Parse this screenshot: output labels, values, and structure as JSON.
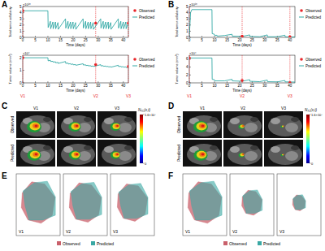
{
  "chart_data": [
    {
      "type": "line",
      "panel": "A",
      "y_label": "Total tumor cellularity",
      "y_multiplier": "×10¹⁰",
      "x_label": "Time (days)",
      "xlim": [
        0,
        42
      ],
      "xticks": [
        0,
        5,
        10,
        15,
        20,
        25,
        30,
        35,
        40
      ],
      "ylim": [
        0,
        5
      ],
      "yticks": [
        0,
        1,
        2,
        3,
        4,
        5
      ],
      "grid": false,
      "legend": "right",
      "series": [
        {
          "name": "Observed",
          "type": "scatter",
          "marker": "circle",
          "color": "#e8262a",
          "x": [
            0,
            29,
            42
          ],
          "values": [
            4.3,
            2.3,
            2.3
          ]
        },
        {
          "name": "Predicted",
          "type": "line",
          "line_style": "solid",
          "color": "#1b9e9a",
          "x": [
            0,
            10,
            10.1,
            11,
            11.1,
            12,
            12.1,
            13,
            13.1,
            14,
            14.1,
            17,
            17.1,
            18,
            18.1,
            19,
            19.1,
            20,
            20.1,
            21,
            21.1,
            24,
            24.1,
            25,
            25.1,
            26,
            26.1,
            27,
            27.1,
            28,
            28.1,
            31,
            31.1,
            32,
            32.1,
            33,
            33.1,
            34,
            34.1,
            35,
            35.1,
            38,
            38.1,
            39,
            39.1,
            40,
            40.1,
            41,
            41.1,
            42
          ],
          "values": [
            4.3,
            4.3,
            1.6,
            2.6,
            1.4,
            2.5,
            1.4,
            2.5,
            1.4,
            2.4,
            1.3,
            3.0,
            1.5,
            2.6,
            1.4,
            2.5,
            1.4,
            2.5,
            1.4,
            2.4,
            1.3,
            3.0,
            1.5,
            2.6,
            1.4,
            2.5,
            1.4,
            2.5,
            1.4,
            2.4,
            1.3,
            3.0,
            1.5,
            2.6,
            1.4,
            2.5,
            1.4,
            2.5,
            1.4,
            2.4,
            1.3,
            3.0,
            1.5,
            2.6,
            1.4,
            2.5,
            1.4,
            2.5,
            1.4,
            2.4
          ]
        }
      ]
    },
    {
      "type": "line",
      "y_label": "Tumor volume (mm³)",
      "y_multiplier": "×10⁴",
      "x_label": "Time (days)",
      "xlim": [
        0,
        42
      ],
      "xticks": [
        0,
        5,
        10,
        15,
        20,
        25,
        30,
        35,
        40
      ],
      "ylim": [
        0,
        2.2
      ],
      "yticks": [
        0,
        1,
        2
      ],
      "grid": false,
      "legend": "right",
      "visits": [
        {
          "x": 0,
          "label": "V1"
        },
        {
          "x": 29,
          "label": "V2"
        },
        {
          "x": 42,
          "label": "V3"
        }
      ],
      "series": [
        {
          "name": "Observed",
          "type": "scatter",
          "marker": "circle",
          "color": "#e8262a",
          "x": [
            0,
            29,
            42
          ],
          "values": [
            2.0,
            1.45,
            1.3
          ]
        },
        {
          "name": "Predicted",
          "type": "line",
          "line_style": "solid",
          "color": "#1b9e9a",
          "x": [
            0,
            10,
            10.1,
            11,
            11.1,
            12,
            12.1,
            13,
            13.1,
            14,
            14.1,
            17,
            17.1,
            18,
            18.1,
            19,
            19.1,
            20,
            20.1,
            21,
            21.1,
            24,
            24.1,
            25,
            25.1,
            26,
            26.1,
            27,
            27.1,
            28,
            28.1,
            31,
            31.1,
            32,
            32.1,
            33,
            33.1,
            34,
            34.1,
            35,
            35.1,
            38,
            38.1,
            39,
            39.1,
            40,
            40.1,
            41,
            41.1,
            42
          ],
          "values": [
            2.0,
            2.0,
            1.75,
            1.8,
            1.7,
            1.72,
            1.65,
            1.68,
            1.6,
            1.63,
            1.55,
            1.7,
            1.55,
            1.58,
            1.5,
            1.53,
            1.47,
            1.5,
            1.44,
            1.46,
            1.4,
            1.52,
            1.42,
            1.44,
            1.38,
            1.4,
            1.35,
            1.37,
            1.32,
            1.34,
            1.3,
            1.45,
            1.35,
            1.37,
            1.32,
            1.34,
            1.3,
            1.31,
            1.27,
            1.29,
            1.25,
            1.4,
            1.3,
            1.32,
            1.27,
            1.29,
            1.25,
            1.27,
            1.22,
            1.24
          ]
        }
      ]
    },
    {
      "type": "line",
      "panel": "B",
      "y_label": "Total tumor cellularity",
      "y_multiplier": "×10¹⁰",
      "x_label": "Time (days)",
      "xlim": [
        0,
        42
      ],
      "xticks": [
        0,
        5,
        10,
        15,
        20,
        25,
        30,
        35,
        40
      ],
      "ylim": [
        0,
        5
      ],
      "yticks": [
        0,
        1,
        2,
        3,
        4,
        5
      ],
      "grid": false,
      "legend": "right",
      "series": [
        {
          "name": "Observed",
          "type": "scatter",
          "marker": "circle",
          "color": "#e8262a",
          "x": [
            21,
            40
          ],
          "values": [
            0.2,
            0.1
          ]
        },
        {
          "name": "Predicted",
          "type": "line",
          "line_style": "solid",
          "color": "#1b9e9a",
          "x": [
            0,
            0.5,
            1,
            9,
            9.1,
            10,
            10.1,
            11,
            11.1,
            14,
            17,
            17.1,
            21,
            24,
            24.1,
            28,
            31,
            31.1,
            35,
            38,
            38.1,
            42
          ],
          "values": [
            0.1,
            4.0,
            4.5,
            4.5,
            0.6,
            0.5,
            0.3,
            0.35,
            0.2,
            0.3,
            0.5,
            0.2,
            0.15,
            0.4,
            0.15,
            0.1,
            0.4,
            0.1,
            0.1,
            0.35,
            0.1,
            0.05
          ]
        }
      ]
    },
    {
      "type": "line",
      "y_label": "Tumor volume (mm³)",
      "y_multiplier": "×10⁴",
      "x_label": "Time (days)",
      "xlim": [
        0,
        42
      ],
      "xticks": [
        0,
        5,
        10,
        15,
        20,
        25,
        30,
        35,
        40
      ],
      "ylim": [
        0,
        7
      ],
      "yticks": [
        0,
        2,
        4,
        6
      ],
      "grid": false,
      "legend": "right",
      "visits": [
        {
          "x": 0,
          "label": "V1"
        },
        {
          "x": 21,
          "label": "V2"
        },
        {
          "x": 40,
          "label": "V3"
        }
      ],
      "series": [
        {
          "name": "Observed",
          "type": "scatter",
          "marker": "circle",
          "color": "#e8262a",
          "x": [
            0,
            21,
            40
          ],
          "values": [
            6.3,
            0.6,
            0.05
          ]
        },
        {
          "name": "Predicted",
          "type": "line",
          "line_style": "solid",
          "color": "#1b9e9a",
          "x": [
            0,
            9,
            9.1,
            10,
            10.1,
            14,
            17,
            17.1,
            21,
            24,
            24.1,
            28,
            31,
            31.1,
            35,
            38,
            38.1,
            42
          ],
          "values": [
            6.3,
            6.3,
            0.9,
            0.8,
            0.5,
            0.5,
            0.9,
            0.5,
            0.4,
            0.8,
            0.4,
            0.3,
            0.7,
            0.3,
            0.25,
            0.6,
            0.25,
            0.2
          ]
        }
      ]
    }
  ],
  "images": [
    {
      "panel": "C",
      "columns": [
        "V1",
        "V2",
        "V3"
      ],
      "rows": [
        "Observed",
        "Predicted"
      ],
      "colorbar": {
        "label": [
          "N",
          "TC",
          "(x,t)"
        ],
        "range": [
          0,
          16000000
        ],
        "ticks": [
          0,
          {
            "value": 16000000,
            "label": "1.6×10⁷"
          }
        ]
      }
    },
    {
      "panel": "D",
      "columns": [
        "V1",
        "V2",
        "V3"
      ],
      "rows": [
        "Observed",
        "Predicted"
      ],
      "colorbar": {
        "label": [
          "N",
          "TC",
          "(x,t)"
        ],
        "range": [
          0,
          16000000
        ],
        "ticks": [
          0,
          {
            "value": 16000000,
            "label": "1.6×10⁷"
          }
        ]
      }
    }
  ],
  "renders": [
    {
      "panel": "E",
      "columns": [
        "V1",
        "V2",
        "V3"
      ],
      "series": [
        {
          "name": "Observed",
          "color": "#c9606b"
        },
        {
          "name": "Predicted",
          "color": "#3aa8a4"
        }
      ]
    },
    {
      "panel": "F",
      "columns": [
        "V1",
        "V2",
        "V3"
      ],
      "series": [
        {
          "name": "Observed",
          "color": "#c9606b"
        },
        {
          "name": "Predicted",
          "color": "#3aa8a4"
        }
      ]
    }
  ]
}
